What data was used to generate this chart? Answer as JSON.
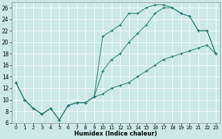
{
  "xlabel": "Humidex (Indice chaleur)",
  "bg_color": "#cce8e8",
  "grid_color": "#ffffff",
  "line_color": "#1a7a6e",
  "xlim": [
    -0.5,
    23.5
  ],
  "ylim": [
    6,
    27
  ],
  "yticks": [
    6,
    8,
    10,
    12,
    14,
    16,
    18,
    20,
    22,
    24,
    26
  ],
  "xticks": [
    0,
    1,
    2,
    3,
    4,
    5,
    6,
    7,
    8,
    9,
    10,
    11,
    12,
    13,
    14,
    15,
    16,
    17,
    18,
    19,
    20,
    21,
    22,
    23
  ],
  "series1_x": [
    0,
    1,
    2,
    3,
    4,
    5,
    6,
    7,
    8,
    9,
    10,
    11,
    12,
    13,
    14,
    15,
    16,
    17,
    18,
    19,
    20,
    21,
    22,
    23
  ],
  "series1_y": [
    13,
    10,
    8.5,
    7.5,
    8.5,
    6.5,
    9,
    9.5,
    9.5,
    10.5,
    11,
    12,
    12.5,
    13,
    14,
    15,
    16,
    17,
    17.5,
    18,
    18.5,
    19,
    19.5,
    18
  ],
  "series2_x": [
    0,
    1,
    2,
    3,
    4,
    5,
    6,
    7,
    8,
    9,
    10,
    11,
    12,
    13,
    14,
    15,
    16,
    17,
    18,
    19,
    20,
    21,
    22,
    23
  ],
  "series2_y": [
    13,
    10,
    8.5,
    7.5,
    8.5,
    6.5,
    9,
    9.5,
    9.5,
    10.5,
    15,
    17,
    18,
    20,
    21.5,
    23,
    25,
    26,
    26,
    25,
    24.5,
    22,
    22,
    18
  ],
  "series3_x": [
    0,
    1,
    2,
    3,
    4,
    5,
    6,
    7,
    8,
    9,
    10,
    11,
    12,
    13,
    14,
    15,
    16,
    17,
    18,
    19,
    20,
    21,
    22,
    23
  ],
  "series3_y": [
    13,
    10,
    8.5,
    7.5,
    8.5,
    6.5,
    9,
    9.5,
    9.5,
    10.5,
    21,
    22,
    23,
    25,
    25,
    26,
    26.5,
    26.5,
    26,
    25,
    24.5,
    22,
    22,
    18
  ]
}
